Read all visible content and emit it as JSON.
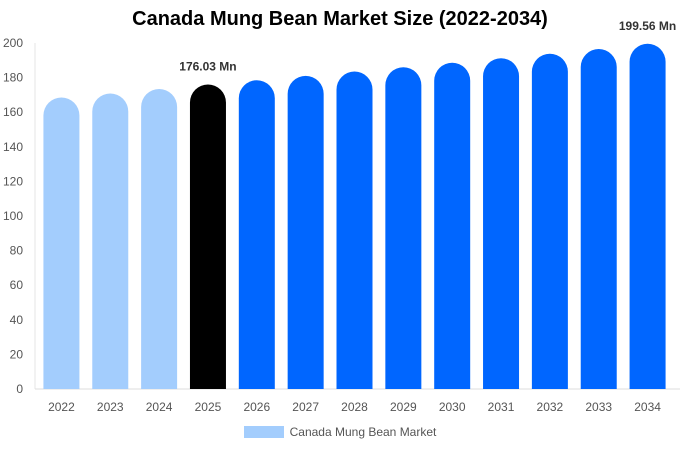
{
  "chart_data": {
    "type": "bar",
    "title": "Canada Mung Bean Market Size (2022-2034)",
    "categories": [
      "2022",
      "2023",
      "2024",
      "2025",
      "2026",
      "2027",
      "2028",
      "2029",
      "2030",
      "2031",
      "2032",
      "2033",
      "2034"
    ],
    "series": [
      {
        "name": "Canada Mung Bean Market",
        "values": [
          168.5,
          170.8,
          173.4,
          176.03,
          178.5,
          181.0,
          183.5,
          186.0,
          188.6,
          191.2,
          193.8,
          196.5,
          199.56
        ]
      }
    ],
    "data_labels": {
      "2025": "176.03 Mn",
      "2034": "199.56 Mn"
    },
    "ylim": [
      0,
      200
    ],
    "yticks": [
      0,
      20,
      40,
      60,
      80,
      100,
      120,
      140,
      160,
      180,
      200
    ],
    "grid": false,
    "legend": "bottom",
    "colors": {
      "historical": "#a3cdfd",
      "current": "#000000",
      "forecast": "#0066ff"
    }
  }
}
